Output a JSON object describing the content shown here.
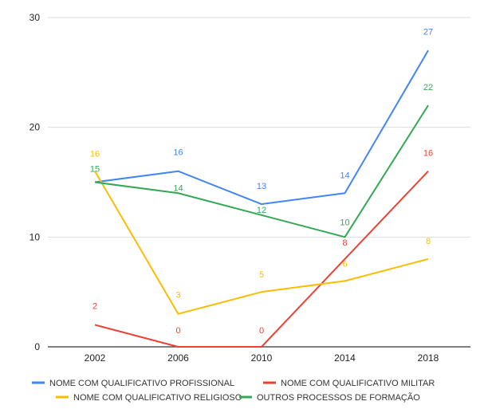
{
  "chart_data": {
    "type": "line",
    "x": [
      "2002",
      "2006",
      "2010",
      "2014",
      "2018"
    ],
    "series": [
      {
        "name": "NOME COM QUALIFICATIVO PROFISSIONAL",
        "color": "#4285f4",
        "values": [
          15,
          16,
          13,
          14,
          27
        ],
        "labels": [
          null,
          "16",
          "13",
          "14",
          "27"
        ]
      },
      {
        "name": "NOME COM QUALIFICATIVO MILITAR",
        "color": "#ea4335",
        "values": [
          2,
          0,
          0,
          8,
          16
        ],
        "labels": [
          "2",
          "0",
          "0",
          "8",
          "16"
        ]
      },
      {
        "name": "NOME COM QUALIFICATIVO RELIGIOSO",
        "color": "#fbbc04",
        "values": [
          16,
          3,
          5,
          6,
          8
        ],
        "labels": [
          "16",
          "3",
          "5",
          "6",
          "8"
        ]
      },
      {
        "name": "OUTROS PROCESSOS DE FORMAÇÃO",
        "color": "#34a853",
        "values": [
          15,
          14,
          12,
          10,
          22
        ],
        "labels": [
          "15",
          "14",
          "12",
          "10",
          "22"
        ]
      }
    ],
    "yticks": [
      "0",
      "10",
      "20",
      "30"
    ],
    "ylim": [
      0,
      30
    ],
    "grid": true,
    "legend_position": "bottom"
  }
}
